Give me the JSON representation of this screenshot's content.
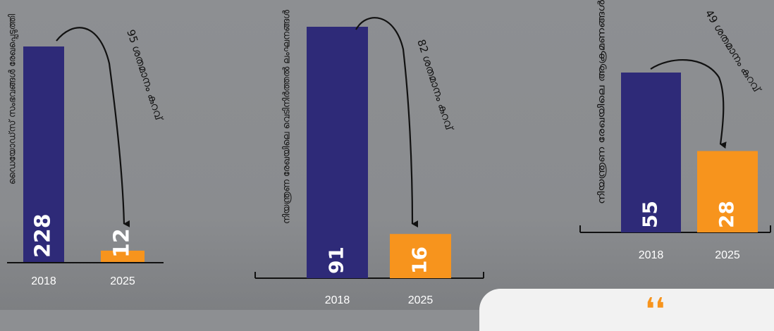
{
  "colors": {
    "bar_2018": "#2e2a78",
    "bar_2025": "#f7941d",
    "axis": "#111111",
    "tick_text": "#ffffff"
  },
  "chart_data": [
    {
      "type": "bar",
      "ylabel": "ഡൈയോഡ്‌സ് സംഭവങ്ങൾ രേഖപ്പെടുത്തി",
      "categories": [
        "2018",
        "2025"
      ],
      "values": [
        228,
        12
      ],
      "value_labels": [
        "228",
        "12"
      ],
      "annotation": "95 ശതമാനം കുറവ്"
    },
    {
      "type": "bar",
      "ylabel": "നിയന്ത്രണ രേഖയിലെ വെടിനിർത്തൽ ലംഘനങ്ങൾ",
      "categories": [
        "2018",
        "2025"
      ],
      "values": [
        91,
        16
      ],
      "value_labels": [
        "91",
        "16"
      ],
      "annotation": "82 ശതമാനം കുറവ്"
    },
    {
      "type": "bar",
      "ylabel": "നിയന്ത്രണ രേഖയിലെ ആക്രമണങ്ങൾ",
      "categories": [
        "2018",
        "2025"
      ],
      "values": [
        55,
        28
      ],
      "value_labels": [
        "55",
        "28"
      ],
      "annotation": "49 ശതമാനം കുറവ്"
    }
  ],
  "quote_mark": "❛❛"
}
